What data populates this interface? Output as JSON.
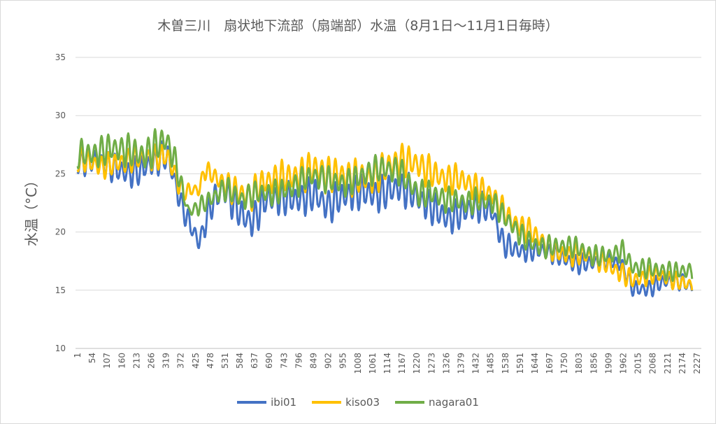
{
  "chart_data": {
    "type": "line",
    "title": "木曽三川　扇状地下流部（扇端部）水温（8月1日～11月1日毎時）",
    "xlabel": "",
    "ylabel": "水温（°C）",
    "ylim": [
      10,
      35
    ],
    "yticks": [
      "10",
      "15",
      "20",
      "25",
      "30",
      "35"
    ],
    "xlim": [
      1,
      2209
    ],
    "xticks": [
      "1",
      "54",
      "107",
      "160",
      "213",
      "266",
      "319",
      "372",
      "425",
      "478",
      "531",
      "584",
      "637",
      "690",
      "743",
      "796",
      "849",
      "902",
      "955",
      "1008",
      "1061",
      "1114",
      "1167",
      "1220",
      "1273",
      "1326",
      "1379",
      "1432",
      "1485",
      "1538",
      "1591",
      "1644",
      "1697",
      "1750",
      "1803",
      "1856",
      "1909",
      "1962",
      "2015",
      "2068",
      "2121",
      "2174",
      "2227"
    ],
    "grid": true,
    "legend_position": "bottom",
    "diurnal_period_hours": 24,
    "series": [
      {
        "name": "ibi01",
        "color": "#4472c4",
        "baseline": [
          [
            1,
            26
          ],
          [
            225,
            25.3
          ],
          [
            325,
            26.3
          ],
          [
            375,
            22.5
          ],
          [
            413,
            20.5
          ],
          [
            438,
            19.3
          ],
          [
            476,
            22
          ],
          [
            526,
            23.5
          ],
          [
            589,
            21.5
          ],
          [
            626,
            21.2
          ],
          [
            677,
            23
          ],
          [
            777,
            22.5
          ],
          [
            853,
            23.5
          ],
          [
            903,
            22.5
          ],
          [
            978,
            23
          ],
          [
            1079,
            23.5
          ],
          [
            1154,
            24
          ],
          [
            1229,
            22.5
          ],
          [
            1330,
            21.5
          ],
          [
            1430,
            22
          ],
          [
            1493,
            21.5
          ],
          [
            1531,
            19.2
          ],
          [
            1606,
            18.5
          ],
          [
            1732,
            17.8
          ],
          [
            1857,
            17.4
          ],
          [
            1958,
            17
          ],
          [
            1996,
            15.3
          ],
          [
            2109,
            15.6
          ],
          [
            2209,
            15.3
          ]
        ],
        "amplitude": [
          [
            1,
            1.2
          ],
          [
            325,
            1.3
          ],
          [
            413,
            0.9
          ],
          [
            526,
            1.5
          ],
          [
            1154,
            1.5
          ],
          [
            1430,
            1.3
          ],
          [
            1606,
            0.9
          ],
          [
            2209,
            0.7
          ]
        ]
      },
      {
        "name": "kiso03",
        "color": "#ffc000",
        "baseline": [
          [
            1,
            26
          ],
          [
            225,
            26
          ],
          [
            325,
            26.8
          ],
          [
            380,
            23.5
          ],
          [
            440,
            23.4
          ],
          [
            455,
            25
          ],
          [
            526,
            24.3
          ],
          [
            589,
            23.5
          ],
          [
            626,
            23.2
          ],
          [
            677,
            24
          ],
          [
            777,
            25
          ],
          [
            853,
            25.5
          ],
          [
            903,
            24.5
          ],
          [
            978,
            24.8
          ],
          [
            1079,
            25
          ],
          [
            1154,
            25.8
          ],
          [
            1229,
            26
          ],
          [
            1330,
            24.5
          ],
          [
            1430,
            23.8
          ],
          [
            1493,
            23.5
          ],
          [
            1556,
            21
          ],
          [
            1606,
            20
          ],
          [
            1732,
            18.5
          ],
          [
            1857,
            17.5
          ],
          [
            1958,
            16.8
          ],
          [
            1996,
            16
          ],
          [
            2109,
            16
          ],
          [
            2209,
            15.8
          ]
        ],
        "amplitude": [
          [
            1,
            1
          ],
          [
            325,
            1.1
          ],
          [
            440,
            0.6
          ],
          [
            526,
            1.2
          ],
          [
            853,
            1.6
          ],
          [
            1229,
            1.4
          ],
          [
            1493,
            1.1
          ],
          [
            1732,
            1
          ],
          [
            2209,
            0.7
          ]
        ]
      },
      {
        "name": "nagara01",
        "color": "#70ad47",
        "baseline": [
          [
            1,
            27
          ],
          [
            225,
            26.8
          ],
          [
            318,
            28
          ],
          [
            350,
            26
          ],
          [
            380,
            23
          ],
          [
            400,
            21.5
          ],
          [
            450,
            22.5
          ],
          [
            526,
            24
          ],
          [
            589,
            22.5
          ],
          [
            677,
            23.5
          ],
          [
            777,
            24
          ],
          [
            853,
            24.5
          ],
          [
            978,
            24.5
          ],
          [
            1154,
            25.5
          ],
          [
            1229,
            23.5
          ],
          [
            1330,
            22.5
          ],
          [
            1430,
            23
          ],
          [
            1493,
            22.5
          ],
          [
            1531,
            21
          ],
          [
            1606,
            19.5
          ],
          [
            1732,
            18.6
          ],
          [
            1857,
            18.2
          ],
          [
            1958,
            18.3
          ],
          [
            1996,
            16.6
          ],
          [
            2109,
            17
          ],
          [
            2209,
            16.5
          ]
        ],
        "amplitude": [
          [
            1,
            1.2
          ],
          [
            318,
            1.5
          ],
          [
            400,
            0.6
          ],
          [
            526,
            1
          ],
          [
            1154,
            1.2
          ],
          [
            1493,
            1
          ],
          [
            1732,
            0.9
          ],
          [
            2209,
            0.8
          ]
        ]
      }
    ]
  }
}
